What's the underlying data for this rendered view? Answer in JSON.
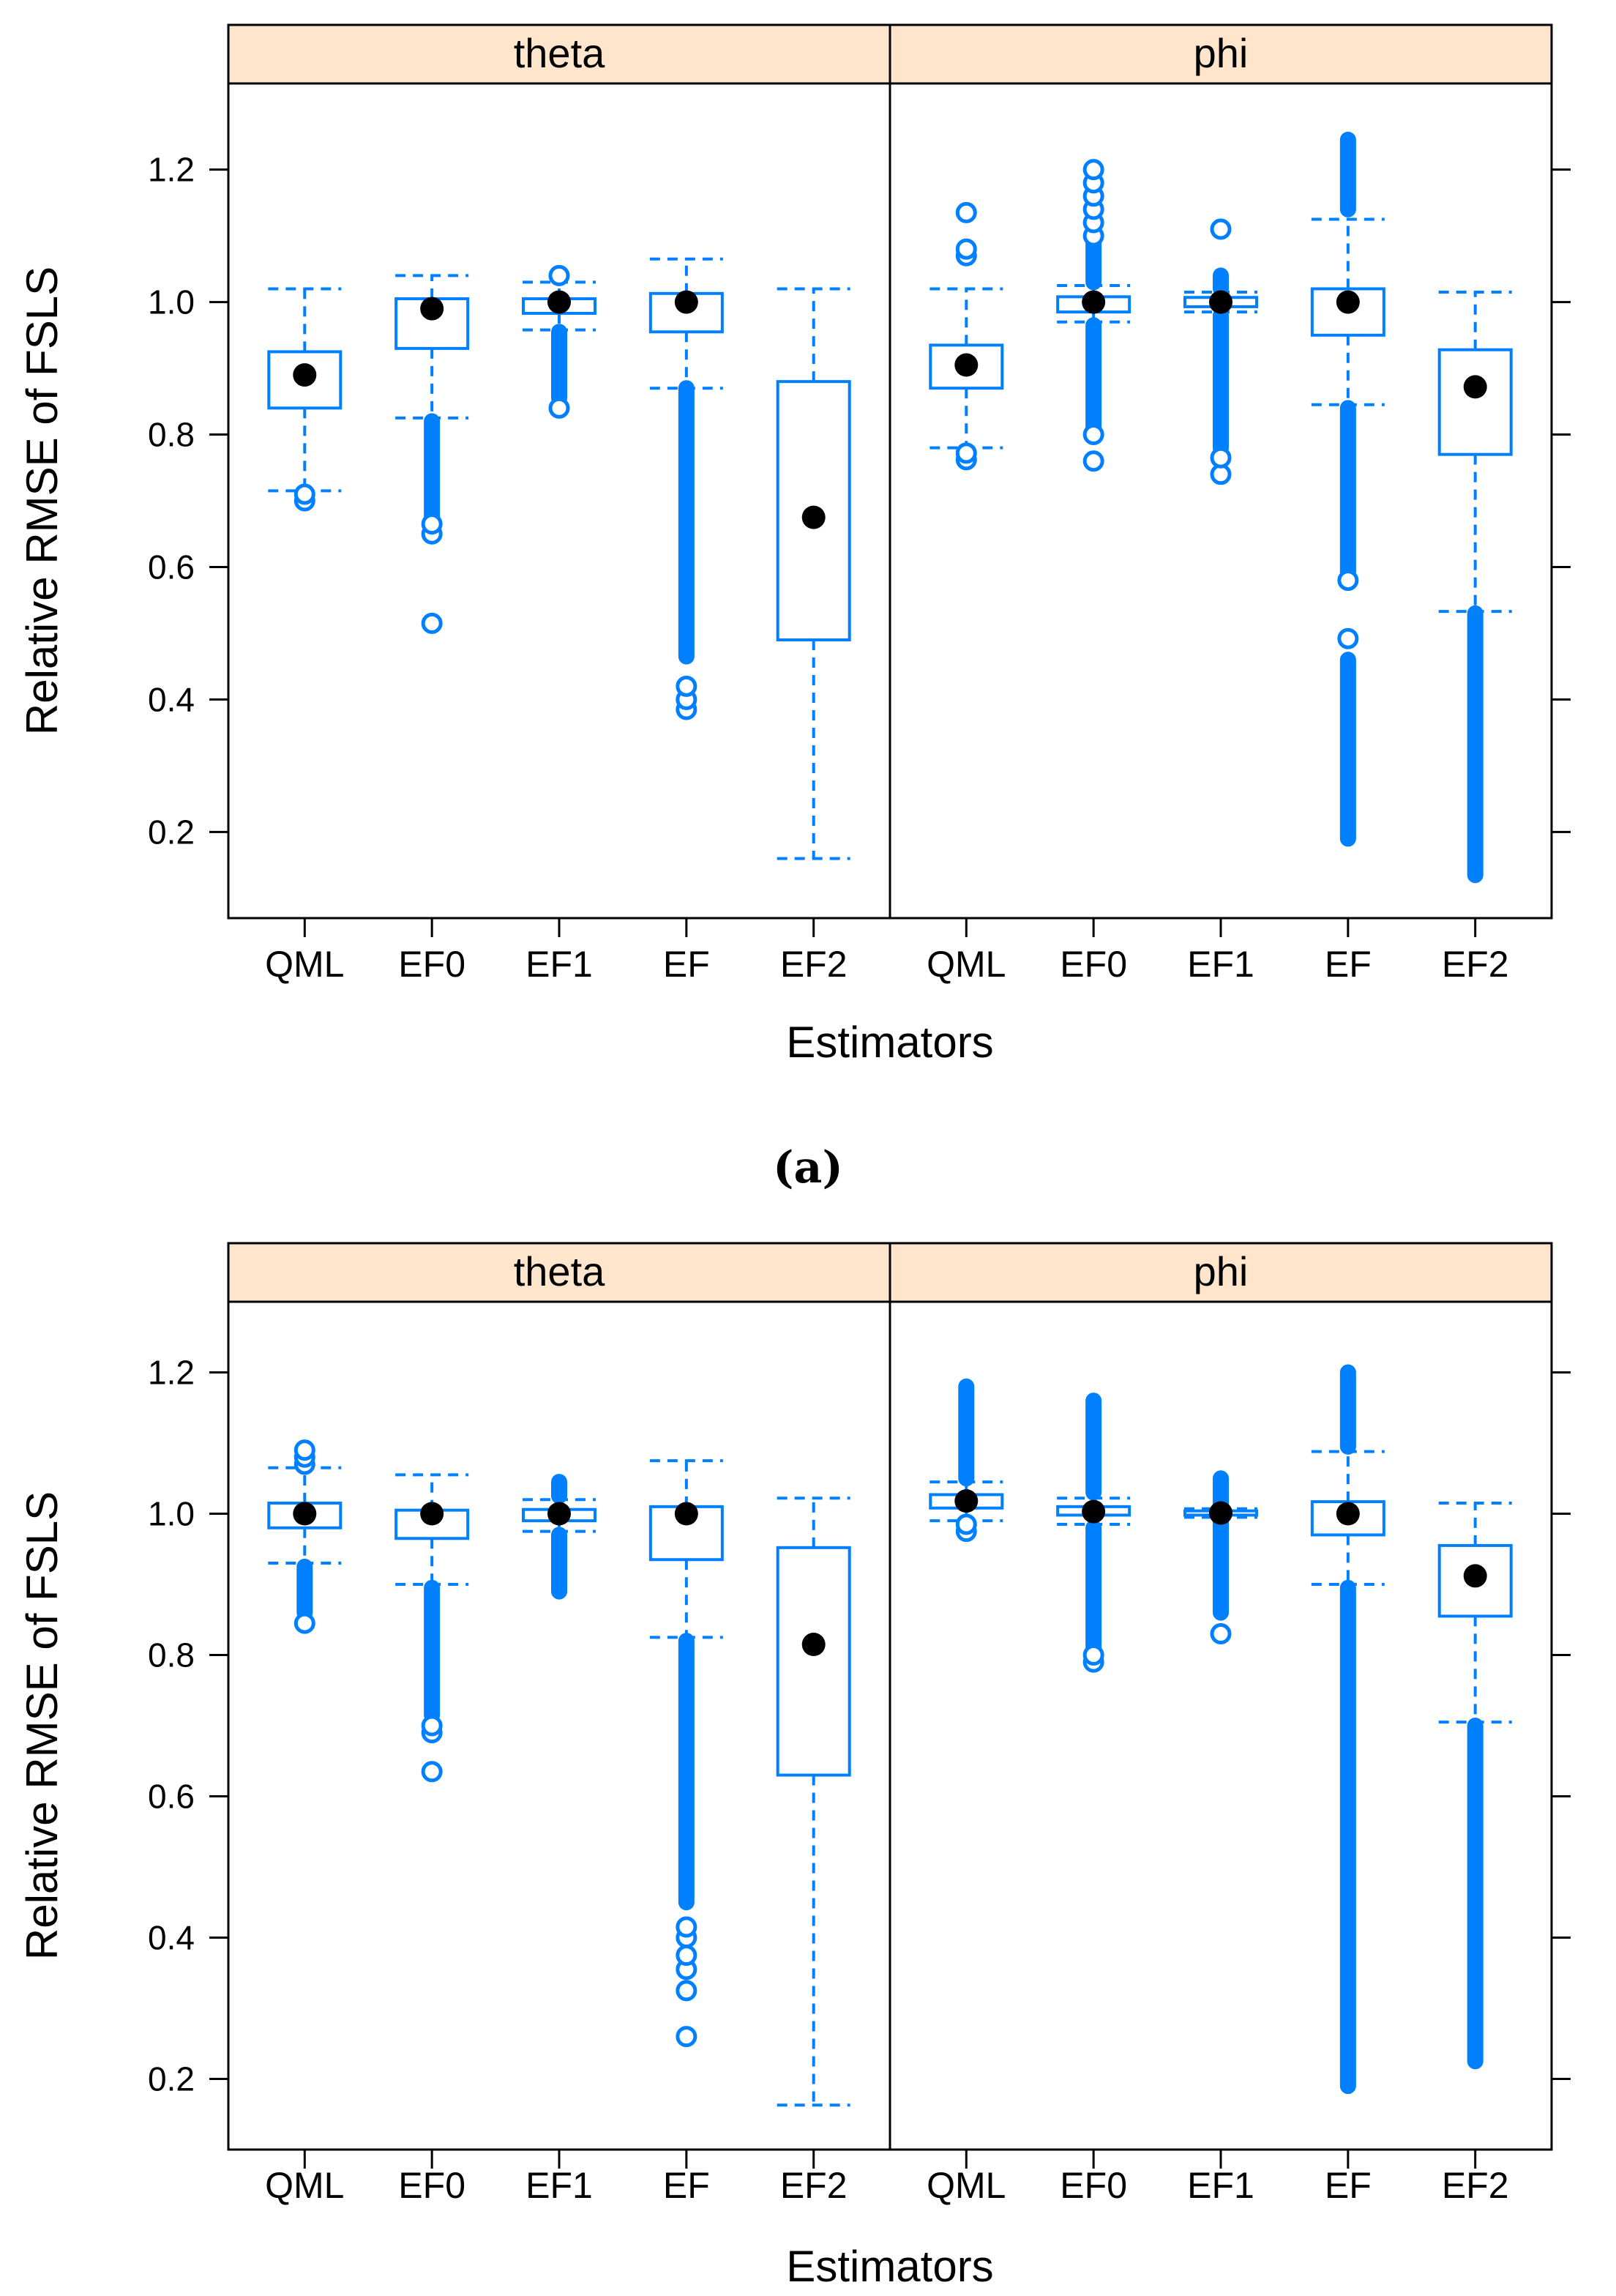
{
  "colors": {
    "box": "#0080ff",
    "median": "#000000",
    "strip": "#ffe5cc",
    "axis": "#000000"
  },
  "caption_a": "(a)",
  "chart_data": [
    {
      "type": "box",
      "id": "a",
      "ylabel": "Relative RMSE of FSLS",
      "xlabel": "Estimators",
      "ylim": [
        0.07,
        1.33
      ],
      "yticks": [
        0.2,
        0.4,
        0.6,
        0.8,
        1.0,
        1.2
      ],
      "ytick_labels": [
        "0.2",
        "0.4",
        "0.6",
        "0.8",
        "1.0",
        "1.2"
      ],
      "categories": [
        "QML",
        "EF0",
        "EF1",
        "EF",
        "EF2"
      ],
      "panels": [
        {
          "name": "theta",
          "boxes": [
            {
              "q1": 0.84,
              "median": 0.89,
              "q3": 0.925,
              "lw": 0.715,
              "uw": 1.02,
              "outliers": [
                0.7,
                0.71
              ],
              "dense": []
            },
            {
              "q1": 0.93,
              "median": 0.99,
              "q3": 1.005,
              "lw": 0.825,
              "uw": 1.04,
              "outliers": [
                0.515,
                0.65,
                0.665
              ],
              "dense": [
                [
                  0.675,
                  0.82
                ]
              ]
            },
            {
              "q1": 0.983,
              "median": 1.0,
              "q3": 1.005,
              "lw": 0.958,
              "uw": 1.03,
              "outliers": [
                0.84,
                1.04
              ],
              "dense": [
                [
                  0.855,
                  0.955
                ]
              ]
            },
            {
              "q1": 0.955,
              "median": 1.0,
              "q3": 1.013,
              "lw": 0.87,
              "uw": 1.065,
              "outliers": [
                0.385,
                0.4,
                0.42
              ],
              "dense": [
                [
                  0.465,
                  0.87
                ]
              ]
            },
            {
              "q1": 0.49,
              "median": 0.675,
              "q3": 0.88,
              "lw": 0.16,
              "uw": 1.02,
              "outliers": [],
              "dense": []
            }
          ]
        },
        {
          "name": "phi",
          "boxes": [
            {
              "q1": 0.87,
              "median": 0.905,
              "q3": 0.935,
              "lw": 0.78,
              "uw": 1.02,
              "outliers": [
                0.762,
                0.772,
                1.07,
                1.08,
                1.135
              ],
              "dense": []
            },
            {
              "q1": 0.985,
              "median": 1.0,
              "q3": 1.008,
              "lw": 0.97,
              "uw": 1.025,
              "outliers": [
                0.76,
                0.8,
                1.1,
                1.12,
                1.14,
                1.16,
                1.18,
                1.2
              ],
              "dense": [
                [
                  0.81,
                  0.965
                ],
                [
                  1.03,
                  1.1
                ]
              ]
            },
            {
              "q1": 0.993,
              "median": 1.0,
              "q3": 1.007,
              "lw": 0.985,
              "uw": 1.015,
              "outliers": [
                0.74,
                0.765,
                1.11
              ],
              "dense": [
                [
                  0.78,
                  0.98
                ],
                [
                  1.02,
                  1.04
                ]
              ]
            },
            {
              "q1": 0.95,
              "median": 1.0,
              "q3": 1.02,
              "lw": 0.845,
              "uw": 1.125,
              "outliers": [
                0.492,
                0.58
              ],
              "dense": [
                [
                  0.19,
                  0.46
                ],
                [
                  0.59,
                  0.84
                ],
                [
                  1.14,
                  1.245
                ]
              ]
            },
            {
              "q1": 0.77,
              "median": 0.872,
              "q3": 0.928,
              "lw": 0.533,
              "uw": 1.015,
              "outliers": [],
              "dense": [
                [
                  0.135,
                  0.53
                ]
              ]
            }
          ]
        }
      ]
    },
    {
      "type": "box",
      "id": "b",
      "ylabel": "Relative RMSE of FSLS",
      "xlabel": "Estimators",
      "ylim": [
        0.1,
        1.3
      ],
      "yticks": [
        0.2,
        0.4,
        0.6,
        0.8,
        1.0,
        1.2
      ],
      "ytick_labels": [
        "0.2",
        "0.4",
        "0.6",
        "0.8",
        "1.0",
        "1.2"
      ],
      "categories": [
        "QML",
        "EF0",
        "EF1",
        "EF",
        "EF2"
      ],
      "panels": [
        {
          "name": "theta",
          "boxes": [
            {
              "q1": 0.98,
              "median": 1.0,
              "q3": 1.015,
              "lw": 0.93,
              "uw": 1.065,
              "outliers": [
                0.845,
                1.07,
                1.08,
                1.09
              ],
              "dense": [
                [
                  0.86,
                  0.925
                ]
              ]
            },
            {
              "q1": 0.965,
              "median": 1.0,
              "q3": 1.005,
              "lw": 0.9,
              "uw": 1.055,
              "outliers": [
                0.635,
                0.69,
                0.7
              ],
              "dense": [
                [
                  0.715,
                  0.895
                ]
              ]
            },
            {
              "q1": 0.99,
              "median": 1.0,
              "q3": 1.006,
              "lw": 0.975,
              "uw": 1.02,
              "outliers": [],
              "dense": [
                [
                  0.89,
                  0.97
                ],
                [
                  1.025,
                  1.045
                ]
              ]
            },
            {
              "q1": 0.935,
              "median": 1.0,
              "q3": 1.01,
              "lw": 0.825,
              "uw": 1.075,
              "outliers": [
                0.26,
                0.325,
                0.355,
                0.375,
                0.4,
                0.415
              ],
              "dense": [
                [
                  0.45,
                  0.82
                ]
              ]
            },
            {
              "q1": 0.63,
              "median": 0.815,
              "q3": 0.952,
              "lw": 0.163,
              "uw": 1.022,
              "outliers": [],
              "dense": []
            }
          ]
        },
        {
          "name": "phi",
          "boxes": [
            {
              "q1": 1.008,
              "median": 1.018,
              "q3": 1.027,
              "lw": 0.99,
              "uw": 1.045,
              "outliers": [
                0.975,
                0.985
              ],
              "dense": [
                [
                  1.05,
                  1.18
                ]
              ]
            },
            {
              "q1": 0.998,
              "median": 1.003,
              "q3": 1.01,
              "lw": 0.985,
              "uw": 1.022,
              "outliers": [
                0.79,
                0.8
              ],
              "dense": [
                [
                  0.81,
                  0.98
                ],
                [
                  1.03,
                  1.16
                ]
              ]
            },
            {
              "q1": 0.998,
              "median": 1.001,
              "q3": 1.004,
              "lw": 0.995,
              "uw": 1.007,
              "outliers": [
                0.83
              ],
              "dense": [
                [
                  0.86,
                  0.99
                ],
                [
                  1.01,
                  1.05
                ]
              ]
            },
            {
              "q1": 0.97,
              "median": 1.0,
              "q3": 1.017,
              "lw": 0.9,
              "uw": 1.088,
              "outliers": [],
              "dense": [
                [
                  0.19,
                  0.895
                ],
                [
                  1.095,
                  1.2
                ]
              ]
            },
            {
              "q1": 0.855,
              "median": 0.912,
              "q3": 0.955,
              "lw": 0.705,
              "uw": 1.015,
              "outliers": [],
              "dense": [
                [
                  0.225,
                  0.7
                ]
              ]
            }
          ]
        }
      ]
    }
  ]
}
